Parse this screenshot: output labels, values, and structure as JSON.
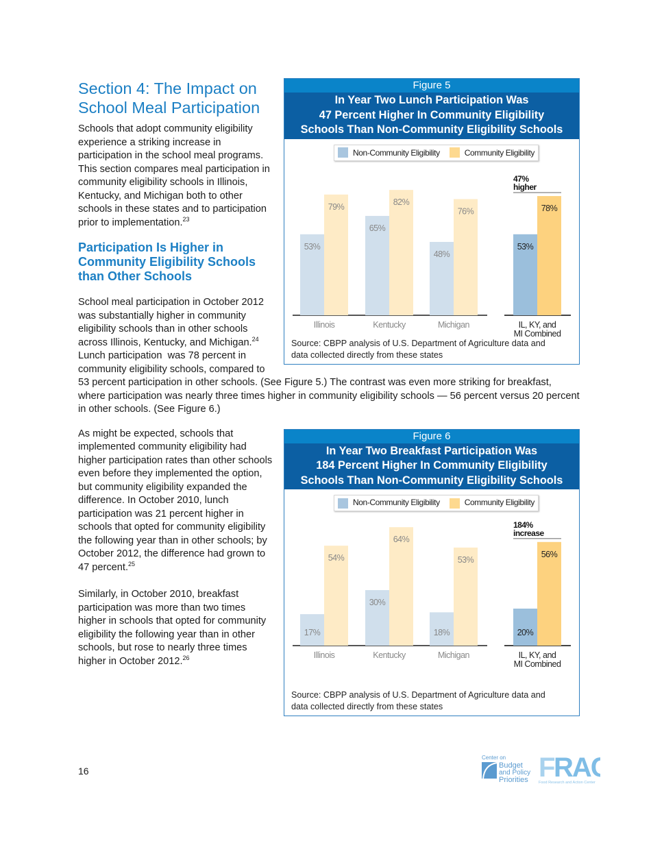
{
  "section_title": "Section 4: The Impact on School Meal Participation",
  "intro_paragraph": "Schools that adopt community eligibility experience a striking increase in participation in the school meal programs.  This section compares meal participation in community eligibility schools in Illinois, Kentucky, and Michigan both to other schools in these states and to participation prior to implementation.",
  "intro_footnote": "23",
  "subheading": "Participation Is Higher in Community Eligibility Schools than Other Schools",
  "para2_start": "School meal participation in October 2012 was substantially higher in community eligibility schools than in other schools across Illinois, Kentucky, and Michigan.",
  "para2_footnote": "24",
  "para2_mid": "  Lunch participation",
  "para2_rest": "was 78 percent in community eligibility schools, compared to 53 percent participation in other schools.  (See Figure 5.)  The contrast was even more striking for breakfast, where participation was nearly three times higher in community eligibility schools — 56 percent versus 20 percent in other schools.  (See Figure 6.)",
  "para3": "As might be expected, schools that implemented community eligibility had higher participation rates than other schools even before they implemented the option, but community eligibility expanded the difference.  In October 2010, lunch participation was 21 percent higher in schools that opted for community eligibility the following year than in other schools; by October 2012, the difference had grown to 47 percent.",
  "para3_footnote": "25",
  "para4": "Similarly, in October 2010, breakfast participation was more than two times higher in schools that opted for community eligibility the following year than in other schools, but rose to nearly three times higher in October 2012.",
  "para4_footnote": "26",
  "page_number": "16",
  "logos": {
    "cbpp": "Center on Budget and Policy Priorities",
    "frac": "FRAC Food Research and Action Center"
  },
  "colors": {
    "heading": "#1b7fc4",
    "fig_number_bg": "#0a84c9",
    "fig_title_bg": "#0c5fa3",
    "non_ce_light": "#d0dfec",
    "ce_light": "#feebc6",
    "non_ce_combined": "#9bbfdc",
    "ce_combined": "#fdd27f"
  },
  "figures": [
    {
      "number": "Figure 5",
      "title_lines": [
        "In Year Two Lunch Participation Was",
        "47 Percent Higher In Community Eligibility",
        "Schools Than Non-Community Eligibility Schools"
      ],
      "source_lines": [
        "Source:  CBPP analysis of U.S. Department of Agriculture data and",
        "data collected directly from these states"
      ]
    },
    {
      "number": "Figure 6",
      "title_lines": [
        "In Year Two Breakfast Participation Was",
        "184 Percent Higher In Community Eligibility",
        "Schools Than Non-Community Eligibility Schools"
      ],
      "source_lines": [
        "Source:  CBPP analysis of U.S. Department of Agriculture data and",
        "data collected directly from these states"
      ]
    }
  ],
  "chart_data": [
    {
      "type": "bar",
      "categories": [
        "Illinois",
        "Kentucky",
        "Michigan",
        [
          "IL, KY, and",
          "MI Combined"
        ]
      ],
      "series": [
        {
          "name": "Non-Community Eligibility",
          "values": [
            53,
            65,
            48,
            53
          ],
          "labels": [
            "53%",
            "65%",
            "48%",
            "53%"
          ]
        },
        {
          "name": "Community Eligibility",
          "values": [
            79,
            82,
            76,
            78
          ],
          "labels": [
            "79%",
            "82%",
            "76%",
            "78%"
          ]
        }
      ],
      "annotation": [
        "47%",
        "higher"
      ],
      "legend": "top",
      "grid": false,
      "ylim": [
        0,
        100
      ]
    },
    {
      "type": "bar",
      "categories": [
        "Illinois",
        "Kentucky",
        "Michigan",
        [
          "IL, KY, and",
          "MI Combined"
        ]
      ],
      "series": [
        {
          "name": "Non-Community Eligibility",
          "values": [
            17,
            30,
            18,
            20
          ],
          "labels": [
            "17%",
            "30%",
            "18%",
            "20%"
          ]
        },
        {
          "name": "Community Eligibility",
          "values": [
            54,
            64,
            53,
            56
          ],
          "labels": [
            "54%",
            "64%",
            "53%",
            "56%"
          ]
        }
      ],
      "annotation": [
        "184%",
        "increase"
      ],
      "legend": "top",
      "grid": false,
      "ylim": [
        0,
        70
      ]
    }
  ]
}
